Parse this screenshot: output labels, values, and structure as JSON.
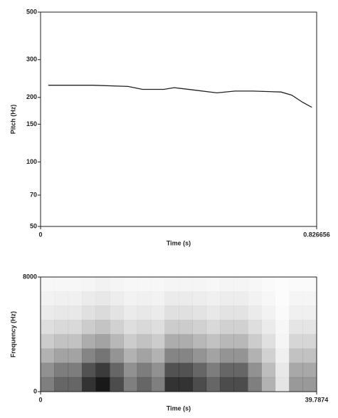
{
  "chart_data": [
    {
      "type": "line",
      "y_label": "Pitch (Hz)",
      "x_label": "Time (s)",
      "log_y": true,
      "xlim": [
        0,
        0.826656
      ],
      "xticks": [
        0,
        0.826656
      ],
      "ylim": [
        50,
        500
      ],
      "yticks": [
        50,
        70,
        100,
        150,
        200,
        300,
        500
      ],
      "color": "#222222",
      "x": [
        0.023,
        0.156,
        0.262,
        0.305,
        0.369,
        0.4,
        0.464,
        0.528,
        0.582,
        0.635,
        0.72,
        0.752,
        0.784,
        0.812
      ],
      "values": [
        228,
        228,
        225,
        218,
        218,
        222,
        216,
        210,
        214,
        214,
        212,
        205,
        190,
        180
      ]
    },
    {
      "type": "spectrogram",
      "y_label": "Frequency (Hz)",
      "x_label": "Time (s)",
      "xlim": [
        0,
        39.7874
      ],
      "xticks": [
        0,
        39.7874
      ],
      "ylim": [
        0,
        8000
      ],
      "yticks": [
        0,
        8000
      ],
      "color": "#000000",
      "z": [
        [
          0.5,
          0.6,
          0.6,
          0.8,
          0.9,
          0.7,
          0.5,
          0.6,
          0.5,
          0.8,
          0.8,
          0.7,
          0.6,
          0.7,
          0.7,
          0.5,
          0.3,
          0.1,
          0.4,
          0.4
        ],
        [
          0.43,
          0.51,
          0.51,
          0.68,
          0.77,
          0.6,
          0.43,
          0.51,
          0.43,
          0.68,
          0.68,
          0.6,
          0.51,
          0.6,
          0.6,
          0.43,
          0.26,
          0.09,
          0.34,
          0.34
        ],
        [
          0.3,
          0.36,
          0.36,
          0.48,
          0.54,
          0.42,
          0.3,
          0.36,
          0.3,
          0.48,
          0.48,
          0.42,
          0.36,
          0.42,
          0.42,
          0.3,
          0.18,
          0.06,
          0.24,
          0.24
        ],
        [
          0.2,
          0.24,
          0.24,
          0.32,
          0.36,
          0.28,
          0.2,
          0.24,
          0.2,
          0.32,
          0.32,
          0.28,
          0.24,
          0.28,
          0.28,
          0.2,
          0.12,
          0.04,
          0.16,
          0.16
        ],
        [
          0.13,
          0.15,
          0.15,
          0.2,
          0.23,
          0.18,
          0.13,
          0.15,
          0.13,
          0.2,
          0.2,
          0.18,
          0.15,
          0.18,
          0.18,
          0.13,
          0.08,
          0.03,
          0.1,
          0.1
        ],
        [
          0.08,
          0.09,
          0.09,
          0.12,
          0.14,
          0.11,
          0.08,
          0.09,
          0.08,
          0.12,
          0.12,
          0.11,
          0.09,
          0.11,
          0.11,
          0.08,
          0.05,
          0.02,
          0.06,
          0.06
        ],
        [
          0.05,
          0.06,
          0.06,
          0.08,
          0.09,
          0.07,
          0.05,
          0.06,
          0.05,
          0.08,
          0.08,
          0.07,
          0.06,
          0.07,
          0.07,
          0.05,
          0.03,
          0.01,
          0.04,
          0.04
        ],
        [
          0.03,
          0.03,
          0.03,
          0.04,
          0.05,
          0.04,
          0.03,
          0.03,
          0.03,
          0.04,
          0.04,
          0.04,
          0.03,
          0.04,
          0.04,
          0.03,
          0.02,
          0.01,
          0.02,
          0.02
        ]
      ]
    }
  ]
}
